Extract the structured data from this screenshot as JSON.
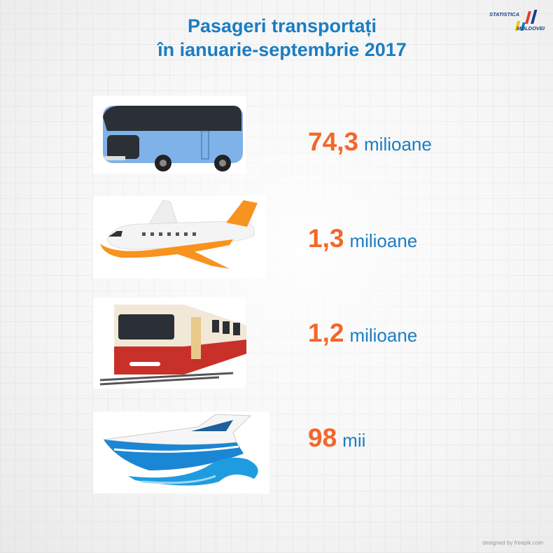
{
  "header": {
    "title_lines": [
      "Pasageri transportați",
      "în ianuarie-septembrie 2017"
    ],
    "logo": [
      "STATISTICA",
      "MOLDOVEI"
    ]
  },
  "items": [
    {
      "value": "74,3",
      "unit": "milioane"
    },
    {
      "value": "1,3",
      "unit": "milioane"
    },
    {
      "value": "1,2",
      "unit": "milioane"
    },
    {
      "value": "98",
      "unit": "mii"
    }
  ],
  "footer": {
    "credit": "designed by freepik.com"
  }
}
